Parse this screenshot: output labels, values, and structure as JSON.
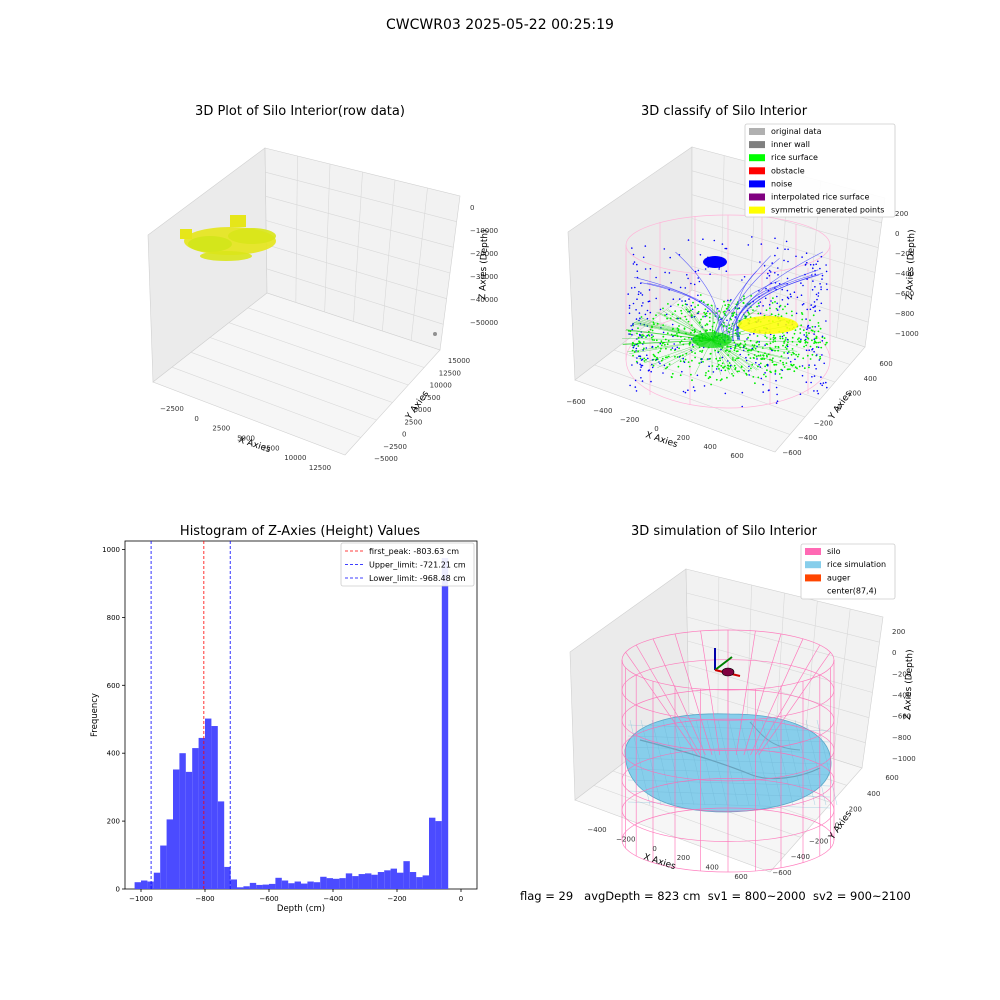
{
  "figure": {
    "suptitle": "CWCWR03 2025-05-22 00:25:19",
    "footer": {
      "flag": "flag = 29",
      "avg_depth": "avgDepth = 823 cm",
      "sv1": "sv1 = 800~2000",
      "sv2": "sv2 = 900~2100"
    }
  },
  "panels": {
    "raw": {
      "title": "3D Plot of Silo Interior(row data)",
      "xlabel": "X Axies",
      "ylabel": "Y Axies",
      "zlabel": "Z Axies (Depth)",
      "xticks": [
        "−2500",
        "0",
        "2500",
        "5000",
        "7500",
        "10000",
        "12500"
      ],
      "yticks": [
        "−5000",
        "−2500",
        "0",
        "2500",
        "5000",
        "7500",
        "10000",
        "12500",
        "15000"
      ],
      "zticks": [
        "0",
        "−10000",
        "−20000",
        "−30000",
        "−40000",
        "−50000"
      ],
      "point_color": "#e6e619"
    },
    "classify": {
      "title": "3D classify of Silo Interior",
      "xlabel": "X Axies",
      "ylabel": "Y Axies",
      "zlabel": "Z Axies (Depth)",
      "xticks": [
        "−600",
        "−400",
        "−200",
        "0",
        "200",
        "400",
        "600"
      ],
      "yticks": [
        "−600",
        "−400",
        "−200",
        "0",
        "200",
        "400",
        "600"
      ],
      "zticks": [
        "200",
        "0",
        "−200",
        "−400",
        "−600",
        "−800",
        "−1000"
      ],
      "legend": [
        {
          "label": "original data",
          "color": "#b0b0b0"
        },
        {
          "label": "inner wall",
          "color": "#808080"
        },
        {
          "label": "rice surface",
          "color": "#00ff00"
        },
        {
          "label": "obstacle",
          "color": "#ff0000"
        },
        {
          "label": "noise",
          "color": "#0000ff"
        },
        {
          "label": "interpolated rice surface",
          "color": "#800080"
        },
        {
          "label": "symmetric generated points",
          "color": "#ffff00"
        }
      ]
    },
    "simulation": {
      "title": "3D simulation of Silo Interior",
      "xlabel": "X Axies",
      "ylabel": "Y Axies",
      "zlabel": "Z Axies (Depth)",
      "xticks": [
        "−400",
        "−200",
        "0",
        "200",
        "400",
        "600"
      ],
      "yticks": [
        "−600",
        "−400",
        "−200",
        "0",
        "200",
        "400",
        "600"
      ],
      "zticks": [
        "200",
        "0",
        "−200",
        "−400",
        "−600",
        "−800",
        "−1000"
      ],
      "legend": [
        {
          "label": "silo",
          "color": "#ff69b4"
        },
        {
          "label": "rice simulation",
          "color": "#87ceeb"
        },
        {
          "label": "auger",
          "color": "#ff4500"
        },
        {
          "label": "center(87,4)",
          "color": ""
        }
      ]
    }
  },
  "chart_data": {
    "type": "bar",
    "title": "Histogram of Z-Axies (Height) Values",
    "xlabel": "Depth (cm)",
    "ylabel": "Frequency",
    "xlim": [
      -1050,
      50
    ],
    "ylim": [
      0,
      1025
    ],
    "xticks": [
      -1000,
      -800,
      -600,
      -400,
      -200,
      0
    ],
    "yticks": [
      0,
      200,
      400,
      600,
      800,
      1000
    ],
    "bar_color": "#4b4bff",
    "bin_width": 20,
    "bins": [
      {
        "x": -1020,
        "count": 20
      },
      {
        "x": -1000,
        "count": 25
      },
      {
        "x": -980,
        "count": 22
      },
      {
        "x": -960,
        "count": 48
      },
      {
        "x": -940,
        "count": 128
      },
      {
        "x": -920,
        "count": 205
      },
      {
        "x": -900,
        "count": 352
      },
      {
        "x": -880,
        "count": 400
      },
      {
        "x": -860,
        "count": 345
      },
      {
        "x": -840,
        "count": 415
      },
      {
        "x": -820,
        "count": 445
      },
      {
        "x": -800,
        "count": 502
      },
      {
        "x": -780,
        "count": 480
      },
      {
        "x": -760,
        "count": 258
      },
      {
        "x": -740,
        "count": 65
      },
      {
        "x": -720,
        "count": 28
      },
      {
        "x": -700,
        "count": 5
      },
      {
        "x": -680,
        "count": 8
      },
      {
        "x": -660,
        "count": 18
      },
      {
        "x": -640,
        "count": 12
      },
      {
        "x": -620,
        "count": 13
      },
      {
        "x": -600,
        "count": 15
      },
      {
        "x": -580,
        "count": 33
      },
      {
        "x": -560,
        "count": 25
      },
      {
        "x": -540,
        "count": 17
      },
      {
        "x": -520,
        "count": 22
      },
      {
        "x": -500,
        "count": 16
      },
      {
        "x": -480,
        "count": 22
      },
      {
        "x": -460,
        "count": 20
      },
      {
        "x": -440,
        "count": 36
      },
      {
        "x": -420,
        "count": 32
      },
      {
        "x": -400,
        "count": 30
      },
      {
        "x": -380,
        "count": 32
      },
      {
        "x": -360,
        "count": 46
      },
      {
        "x": -340,
        "count": 38
      },
      {
        "x": -320,
        "count": 44
      },
      {
        "x": -300,
        "count": 46
      },
      {
        "x": -280,
        "count": 42
      },
      {
        "x": -260,
        "count": 50
      },
      {
        "x": -240,
        "count": 55
      },
      {
        "x": -220,
        "count": 60
      },
      {
        "x": -200,
        "count": 48
      },
      {
        "x": -180,
        "count": 82
      },
      {
        "x": -160,
        "count": 50
      },
      {
        "x": -140,
        "count": 35
      },
      {
        "x": -120,
        "count": 40
      },
      {
        "x": -100,
        "count": 210
      },
      {
        "x": -80,
        "count": 200
      },
      {
        "x": -60,
        "count": 975
      }
    ],
    "lines": [
      {
        "x": -803.63,
        "color": "#ff0000",
        "label": "first_peak: -803.63 cm"
      },
      {
        "x": -721.21,
        "color": "#0000ff",
        "label": "Upper_limit: -721.21 cm"
      },
      {
        "x": -968.48,
        "color": "#0000ff",
        "label": "Lower_limit: -968.48 cm"
      }
    ]
  }
}
